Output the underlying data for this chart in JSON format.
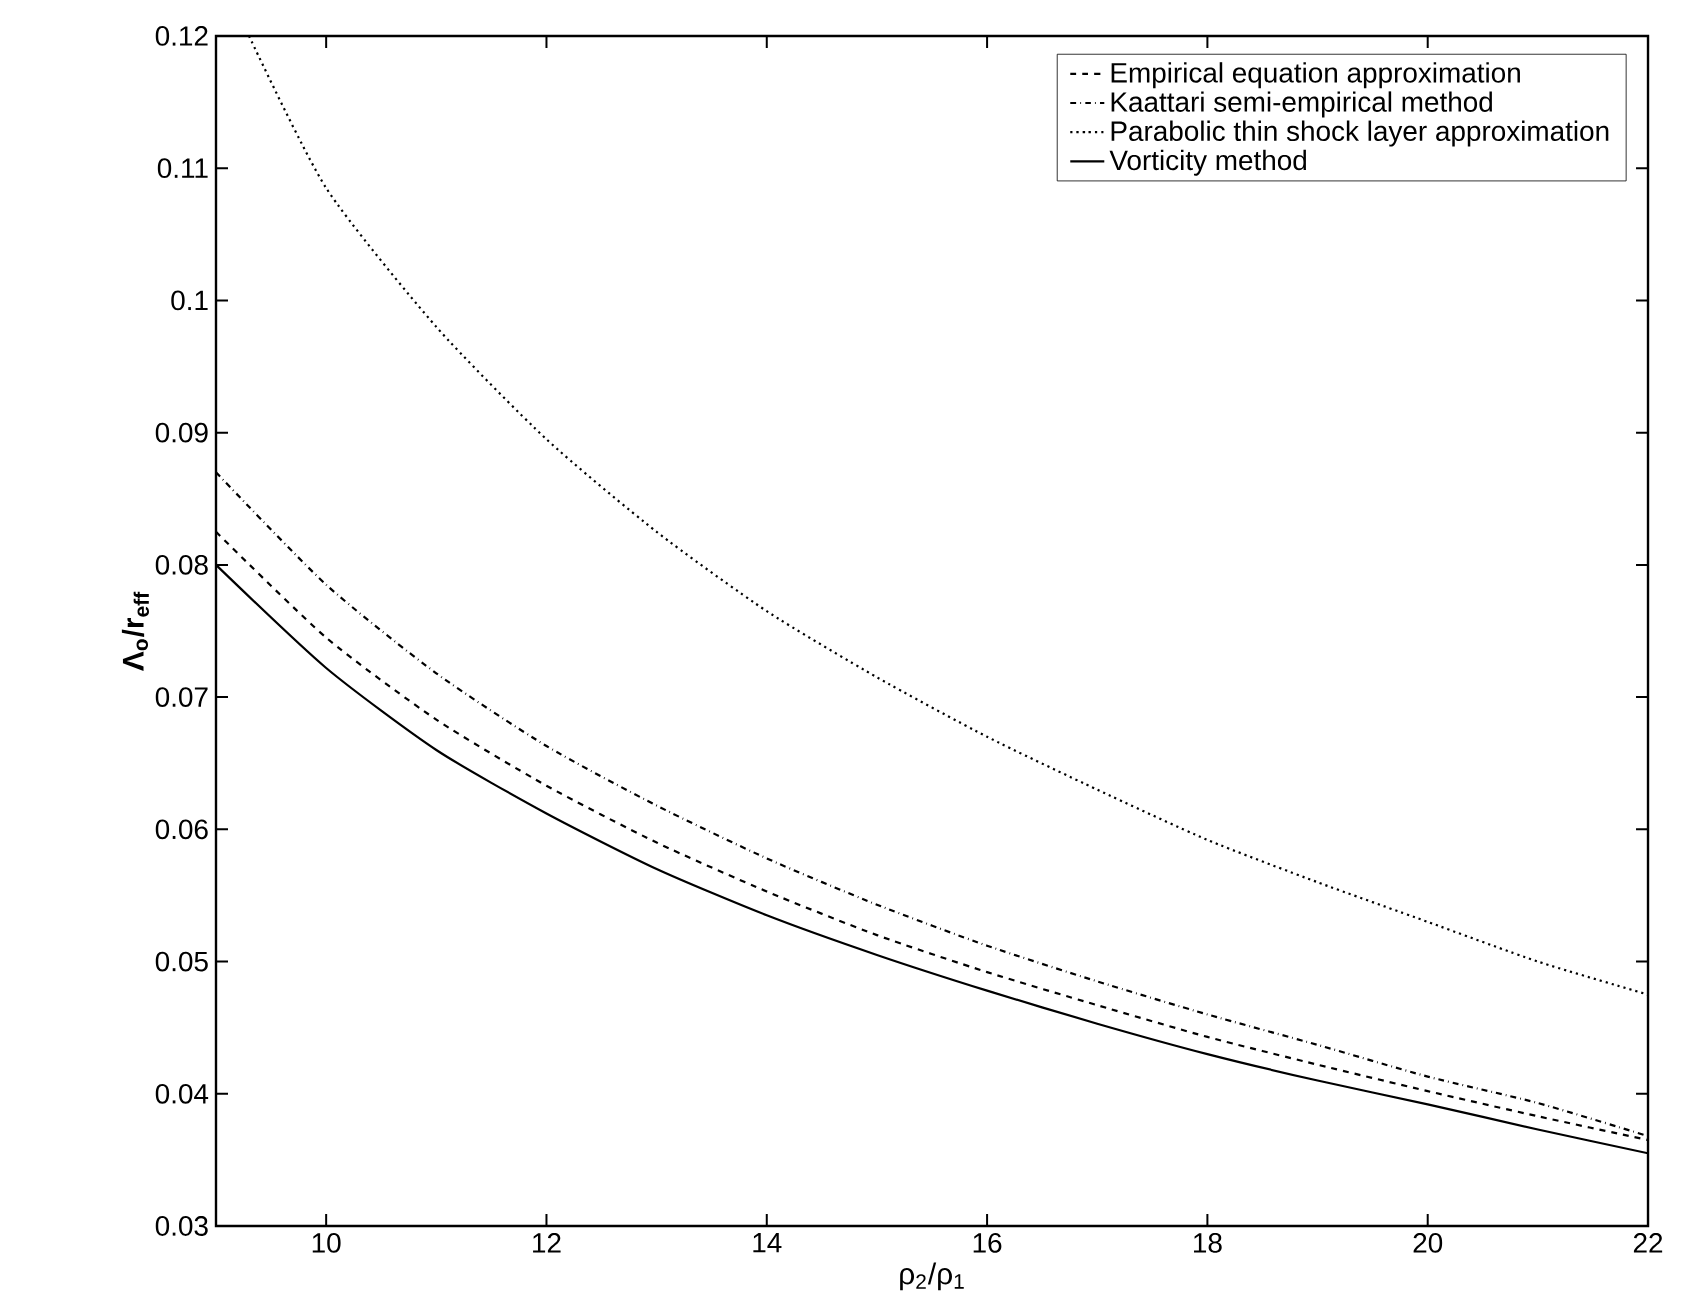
{
  "chart_data": {
    "type": "line",
    "xlabel": "ρ$_{2}$/ρ$_{1}$",
    "ylabel": "Λ$_{o}$/r$_{eff}$",
    "xlim": [
      9,
      22
    ],
    "ylim": [
      0.03,
      0.12
    ],
    "xticks": [
      10,
      12,
      14,
      16,
      18,
      20,
      22
    ],
    "yticks": [
      0.03,
      0.04,
      0.05,
      0.06,
      0.07,
      0.08,
      0.09,
      0.1,
      0.11,
      0.12
    ],
    "legend": "top right",
    "grid": false,
    "marker": "none",
    "series": [
      {
        "name": "Empirical equation approximation",
        "color": "#000000",
        "line_style": "dashed",
        "x": [
          9,
          10,
          11,
          12,
          13,
          14,
          15,
          16,
          17,
          18,
          19,
          20,
          21,
          22
        ],
        "values": [
          0.0825,
          0.0745,
          0.0683,
          0.0633,
          0.059,
          0.0553,
          0.052,
          0.0492,
          0.0467,
          0.0443,
          0.0422,
          0.0402,
          0.0383,
          0.0365
        ]
      },
      {
        "name": "Kaattari semi-empirical method",
        "color": "#000000",
        "line_style": "dashdot",
        "x": [
          9,
          10,
          11,
          12,
          13,
          14,
          15,
          16,
          17,
          18,
          19,
          20,
          21,
          22
        ],
        "values": [
          0.087,
          0.0785,
          0.0718,
          0.0663,
          0.0618,
          0.0578,
          0.0543,
          0.0512,
          0.0485,
          0.046,
          0.0437,
          0.0413,
          0.0393,
          0.0368
        ]
      },
      {
        "name": "Parabolic thin shock layer approximation",
        "color": "#000000",
        "line_style": "dotted",
        "x": [
          9.3,
          10,
          11,
          12,
          13,
          14,
          15,
          16,
          17,
          18,
          19,
          20,
          21,
          22
        ],
        "values": [
          0.12,
          0.1085,
          0.098,
          0.0895,
          0.0825,
          0.0765,
          0.0715,
          0.067,
          0.063,
          0.0592,
          0.056,
          0.053,
          0.05,
          0.0475
        ]
      },
      {
        "name": "Vorticity method",
        "color": "#000000",
        "line_style": "solid",
        "x": [
          9,
          10,
          11,
          12,
          13,
          14,
          15,
          16,
          17,
          18,
          19,
          20,
          21,
          22
        ],
        "values": [
          0.08,
          0.0722,
          0.066,
          0.0612,
          0.057,
          0.0535,
          0.0505,
          0.0478,
          0.0453,
          0.043,
          0.041,
          0.0392,
          0.0373,
          0.0355
        ]
      }
    ]
  }
}
